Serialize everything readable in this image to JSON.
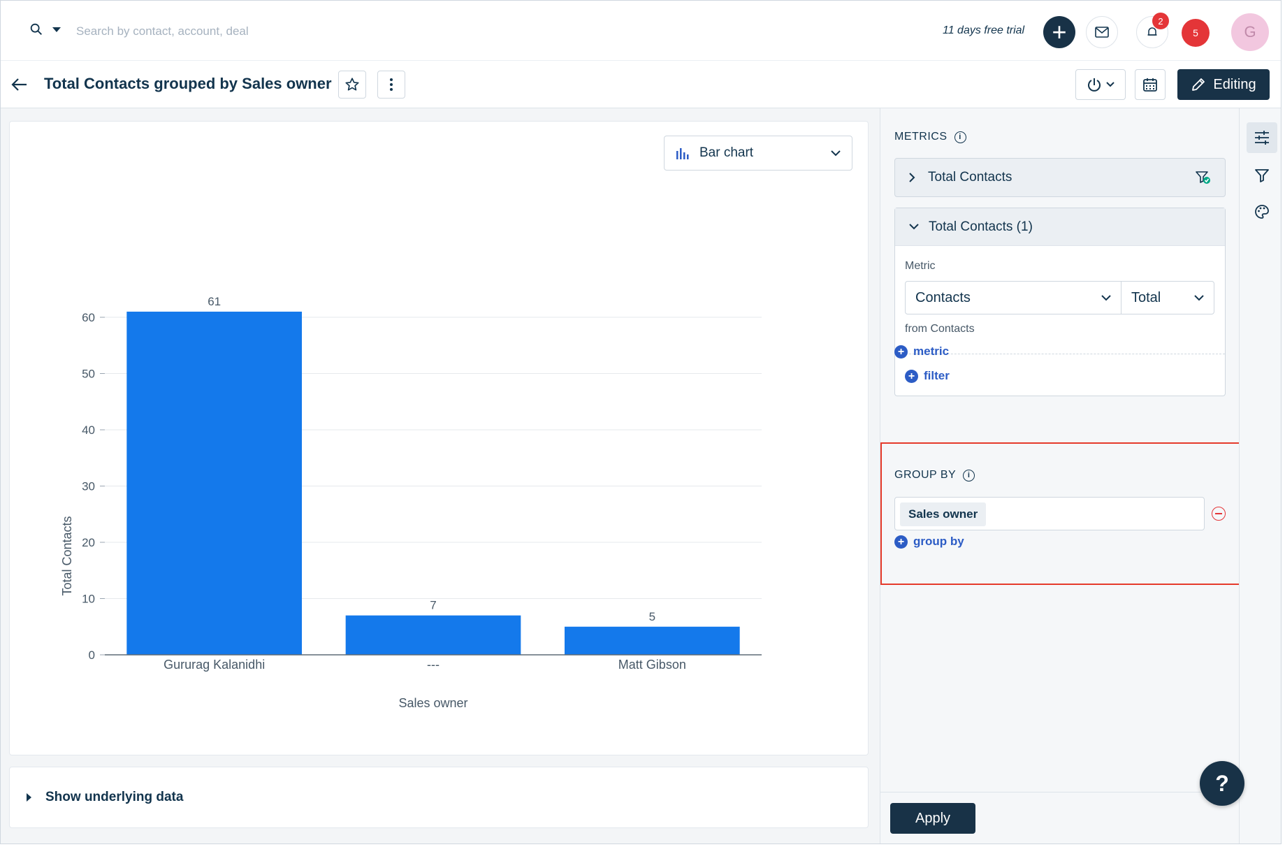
{
  "topbar": {
    "search_placeholder": "Search by contact, account, deal",
    "trial_text": "11 days free trial",
    "add_label": "+",
    "bell_badge": "2",
    "notification_count": "5",
    "avatar_initial": "G"
  },
  "header": {
    "title": "Total Contacts grouped by Sales owner",
    "edit_label": "Editing"
  },
  "chart_type_select": {
    "label": "Bar chart"
  },
  "chart_data": {
    "type": "bar",
    "categories": [
      "Gururag Kalanidhi",
      "---",
      "Matt Gibson"
    ],
    "values": [
      61,
      7,
      5
    ],
    "xlabel": "Sales owner",
    "ylabel": "Total Contacts",
    "ylim": [
      0,
      60
    ],
    "yticks": [
      0,
      10,
      20,
      30,
      40,
      50,
      60
    ],
    "bar_color": "#1479eb",
    "grid": true
  },
  "underlying_data": {
    "label": "Show underlying data"
  },
  "panel": {
    "metrics_label": "METRICS",
    "metric_collapsed_title": "Total Contacts",
    "metric_expanded_title": "Total Contacts (1)",
    "metric_field_label": "Metric",
    "metric_object": "Contacts",
    "metric_aggregation": "Total",
    "from_text": "from Contacts",
    "add_filter_label": "filter",
    "add_metric_label": "metric",
    "groupby_label": "GROUP BY",
    "groupby_value": "Sales owner",
    "add_groupby_label": "group by",
    "apply_label": "Apply"
  },
  "help_label": "?",
  "colors": {
    "accent": "#183247",
    "link": "#2c5cc5",
    "highlight_border": "#e53a2b"
  }
}
